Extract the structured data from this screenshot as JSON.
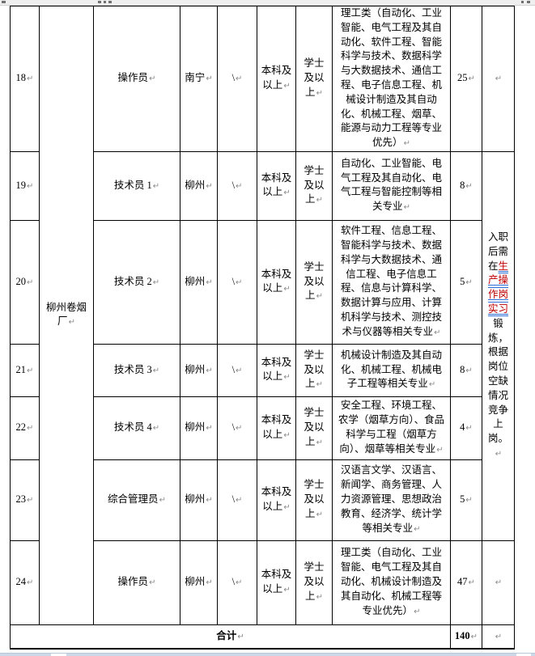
{
  "pilcrow": "↵",
  "colors": {
    "highlight_text": "#c00000",
    "highlight_underline": "#2f6fd6",
    "pilcrow": "#8a8a8a",
    "page_bottom_band": "#ccd8e8"
  },
  "table": {
    "unit_label": "柳州卷烟厂",
    "rows": [
      {
        "seq": "18",
        "position": "操作员",
        "location": "南宁",
        "slash": "\\",
        "education": "本科及以上",
        "degree": "学士及以上",
        "major": "理工类（自动化、工业智能、电气工程及其自动化、软件工程、智能科学与技术、数据科学与大数据技术、通信工程、电子信息工程、机械设计制造及其自动化、机械工程、烟草、能源与动力工程等专业优先）",
        "count": "25",
        "note": ""
      },
      {
        "seq": "19",
        "position": "技术员 1",
        "location": "柳州",
        "slash": "\\",
        "education": "本科及以上",
        "degree": "学士及以上",
        "major": "自动化、工业智能、电气工程及其自动化、电气工程与智能控制等相关专业",
        "count": "8"
      },
      {
        "seq": "20",
        "position": "技术员 2",
        "location": "柳州",
        "slash": "\\",
        "education": "本科及以上",
        "degree": "学士及以上",
        "major": "软件工程、信息工程、智能科学与技术、数据科学与大数据技术、通信工程、电子信息工程、信息与计算科学、数据计算与应用、计算机科学与技术、测控技术与仪器等相关专业",
        "count": "5"
      },
      {
        "seq": "21",
        "position": "技术员 3",
        "location": "柳州",
        "slash": "\\",
        "education": "本科及以上",
        "degree": "学士及以上",
        "major": "机械设计制造及其自动化、机械工程、机械电子工程等相关专业",
        "count": "8"
      },
      {
        "seq": "22",
        "position": "技术员 4",
        "location": "柳州",
        "slash": "\\",
        "education": "本科及以上",
        "degree": "学士及以上",
        "major": "安全工程、环境工程、农学（烟草方向）、食品科学与工程（烟草方向）、烟草等相关专业",
        "count": "4"
      },
      {
        "seq": "23",
        "position": "综合管理员",
        "location": "柳州",
        "slash": "\\",
        "education": "本科及以上",
        "degree": "学士及以上",
        "major": "汉语言文学、汉语言、新闻学、商务管理、人力资源管理、思想政治教育、经济学、统计学等相关专业",
        "count": "5"
      },
      {
        "seq": "24",
        "position": "操作员",
        "location": "柳州",
        "slash": "\\",
        "education": "本科及以上",
        "degree": "学士及以上",
        "major": "理工类（自动化、工业智能、电气工程及其自动化、机械设计制造及其自动化、机械工程等专业优先）",
        "count": "47",
        "note": ""
      }
    ],
    "note_merged": {
      "prefix": "入职后需在",
      "highlight": "生产操作岗实习",
      "suffix": "锻炼，根据岗位空缺情况竞争上岗。"
    },
    "total_label": "合计",
    "total_value": "140"
  }
}
